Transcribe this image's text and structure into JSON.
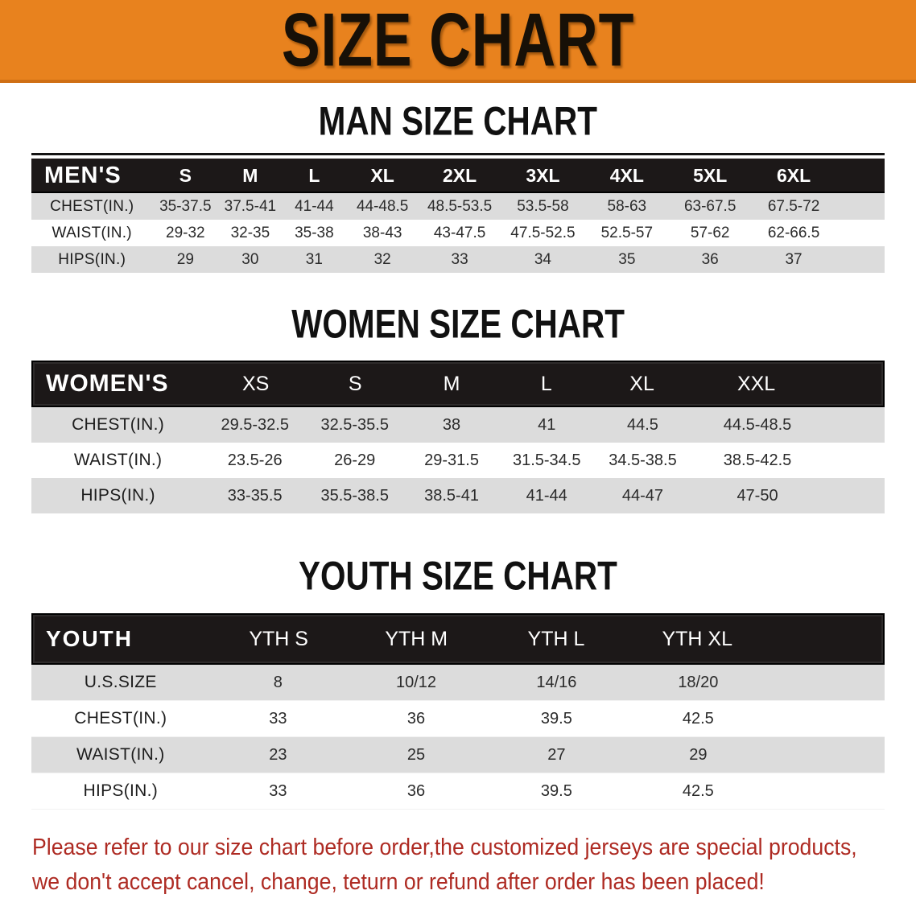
{
  "banner": {
    "title": "SIZE CHART"
  },
  "colors": {
    "banner_bg": "#E8821E",
    "table_header_bg": "#1c1818",
    "stripe_row_bg": "#dcdcdc",
    "footnote_red": "#AE2B23"
  },
  "sections": [
    {
      "heading": "MAN SIZE CHART",
      "table": {
        "label": "MEN'S",
        "columns": [
          "S",
          "M",
          "L",
          "XL",
          "2XL",
          "3XL",
          "4XL",
          "5XL",
          "6XL"
        ],
        "rows": [
          {
            "label": "CHEST(IN.)",
            "values": [
              "35-37.5",
              "37.5-41",
              "41-44",
              "44-48.5",
              "48.5-53.5",
              "53.5-58",
              "58-63",
              "63-67.5",
              "67.5-72"
            ]
          },
          {
            "label": "WAIST(IN.)",
            "values": [
              "29-32",
              "32-35",
              "35-38",
              "38-43",
              "43-47.5",
              "47.5-52.5",
              "52.5-57",
              "57-62",
              "62-66.5"
            ]
          },
          {
            "label": "HIPS(IN.)",
            "values": [
              "29",
              "30",
              "31",
              "32",
              "33",
              "34",
              "35",
              "36",
              "37"
            ]
          }
        ]
      }
    },
    {
      "heading": "WOMEN SIZE CHART",
      "table": {
        "label": "WOMEN'S",
        "columns": [
          "XS",
          "S",
          "M",
          "L",
          "XL",
          "XXL"
        ],
        "rows": [
          {
            "label": "CHEST(IN.)",
            "values": [
              "29.5-32.5",
              "32.5-35.5",
              "38",
              "41",
              "44.5",
              "44.5-48.5"
            ]
          },
          {
            "label": "WAIST(IN.)",
            "values": [
              "23.5-26",
              "26-29",
              "29-31.5",
              "31.5-34.5",
              "34.5-38.5",
              "38.5-42.5"
            ]
          },
          {
            "label": "HIPS(IN.)",
            "values": [
              "33-35.5",
              "35.5-38.5",
              "38.5-41",
              "41-44",
              "44-47",
              "47-50"
            ]
          }
        ]
      }
    },
    {
      "heading": "YOUTH SIZE CHART",
      "table": {
        "label": "YOUTH",
        "columns": [
          "YTH S",
          "YTH M",
          "YTH L",
          "YTH XL"
        ],
        "rows": [
          {
            "label": "U.S.SIZE",
            "values": [
              "8",
              "10/12",
              "14/16",
              "18/20"
            ]
          },
          {
            "label": "CHEST(IN.)",
            "values": [
              "33",
              "36",
              "39.5",
              "42.5"
            ]
          },
          {
            "label": "WAIST(IN.)",
            "values": [
              "23",
              "25",
              "27",
              "29"
            ]
          },
          {
            "label": "HIPS(IN.)",
            "values": [
              "33",
              "36",
              "39.5",
              "42.5"
            ]
          }
        ]
      }
    }
  ],
  "footnote": {
    "line1": "Please refer to our size chart before order,the customized jerseys are special products,",
    "line2": "we don't accept cancel, change, teturn or refund after order has been placed!"
  }
}
